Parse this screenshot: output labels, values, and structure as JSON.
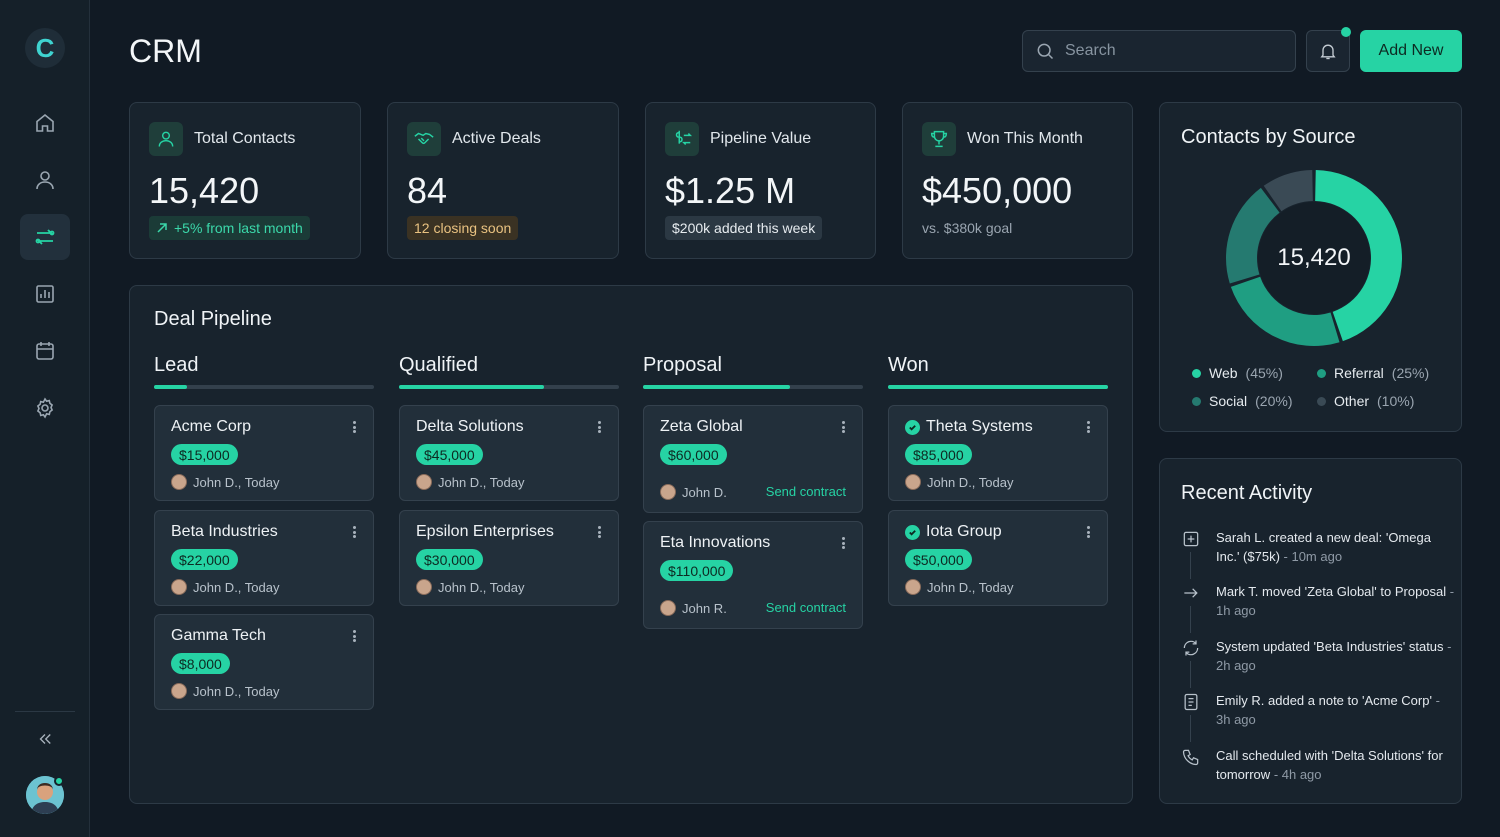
{
  "app": {
    "title": "CRM",
    "logo_letter": "C"
  },
  "header": {
    "search_placeholder": "Search",
    "add_button_label": "Add New",
    "notifications": {
      "has_unread": true
    }
  },
  "sidebar": {
    "items": [
      {
        "name": "home",
        "icon": "home-icon",
        "active": false
      },
      {
        "name": "contacts",
        "icon": "user-icon",
        "active": false
      },
      {
        "name": "deals",
        "icon": "transfer-icon",
        "active": true
      },
      {
        "name": "reports",
        "icon": "bar-chart-icon",
        "active": false
      },
      {
        "name": "calendar",
        "icon": "calendar-icon",
        "active": false
      },
      {
        "name": "settings",
        "icon": "gear-icon",
        "active": false
      }
    ],
    "collapse_icon": "double-chevron-left-icon"
  },
  "stats": [
    {
      "label": "Total Contacts",
      "value": "15,420",
      "sub": "+5% from last month",
      "sub_style": "green",
      "icon": "user-icon"
    },
    {
      "label": "Active Deals",
      "value": "84",
      "sub": "12 closing soon",
      "sub_style": "amber",
      "icon": "handshake-icon"
    },
    {
      "label": "Pipeline Value",
      "value": "$1.25 M",
      "sub": "$200k added this week",
      "sub_style": "gray",
      "icon": "dollar-exchange-icon"
    },
    {
      "label": "Won This Month",
      "value": "$450,000",
      "sub": "vs. $380k goal",
      "sub_style": "plain",
      "icon": "trophy-icon"
    }
  ],
  "pipeline": {
    "title": "Deal Pipeline",
    "columns": [
      {
        "title": "Lead",
        "progress": 0.15,
        "deals": [
          {
            "name": "Acme Corp",
            "amount": "$15,000",
            "owner": "John D., Today"
          },
          {
            "name": "Beta Industries",
            "amount": "$22,000",
            "owner": "John D., Today"
          },
          {
            "name": "Gamma Tech",
            "amount": "$8,000",
            "owner": "John D., Today"
          }
        ]
      },
      {
        "title": "Qualified",
        "progress": 0.66,
        "deals": [
          {
            "name": "Delta Solutions",
            "amount": "$45,000",
            "owner": "John D., Today"
          },
          {
            "name": "Epsilon Enterprises",
            "amount": "$30,000",
            "owner": "John D., Today"
          }
        ]
      },
      {
        "title": "Proposal",
        "progress": 0.67,
        "deals": [
          {
            "name": "Zeta Global",
            "amount": "$60,000",
            "owner": "John D.",
            "action": "Send contract"
          },
          {
            "name": "Eta Innovations",
            "amount": "$110,000",
            "owner": "John R.",
            "action": "Send contract"
          }
        ]
      },
      {
        "title": "Won",
        "progress": 1.0,
        "deals": [
          {
            "name": "Theta Systems",
            "amount": "$85,000",
            "owner": "John D., Today",
            "won": true
          },
          {
            "name": "Iota Group",
            "amount": "$50,000",
            "owner": "John D., Today",
            "won": true
          }
        ]
      }
    ]
  },
  "contacts_by_source": {
    "title": "Contacts by Source",
    "total": "15,420",
    "legend": [
      {
        "label": "Web",
        "pct": "(45%)",
        "value": 45,
        "color": "#26d3a4"
      },
      {
        "label": "Referral",
        "pct": "(25%)",
        "value": 25,
        "color": "#1f9e82"
      },
      {
        "label": "Social",
        "pct": "(20%)",
        "value": 20,
        "color": "#257a70"
      },
      {
        "label": "Other",
        "pct": "(10%)",
        "value": 10,
        "color": "#3a4a55"
      }
    ]
  },
  "recent_activity": {
    "title": "Recent Activity",
    "items": [
      {
        "icon": "plus-square-icon",
        "text": "Sarah L. created a new deal: 'Omega Inc.' ($75k)",
        "time": "- 10m ago"
      },
      {
        "icon": "arrow-right-icon",
        "text": "Mark T. moved 'Zeta Global' to Proposal",
        "time": "- 1h ago"
      },
      {
        "icon": "refresh-icon",
        "text": "System updated 'Beta Industries' status",
        "time": "- 2h ago"
      },
      {
        "icon": "document-icon",
        "text": "Emily R. added a note to 'Acme Corp'",
        "time": "- 3h ago"
      },
      {
        "icon": "phone-icon",
        "text": "Call scheduled with 'Delta Solutions' for tomorrow",
        "time": "- 4h ago"
      }
    ]
  },
  "colors": {
    "accent": "#26d3a4",
    "background": "#111a24",
    "panel": "#18232d"
  }
}
